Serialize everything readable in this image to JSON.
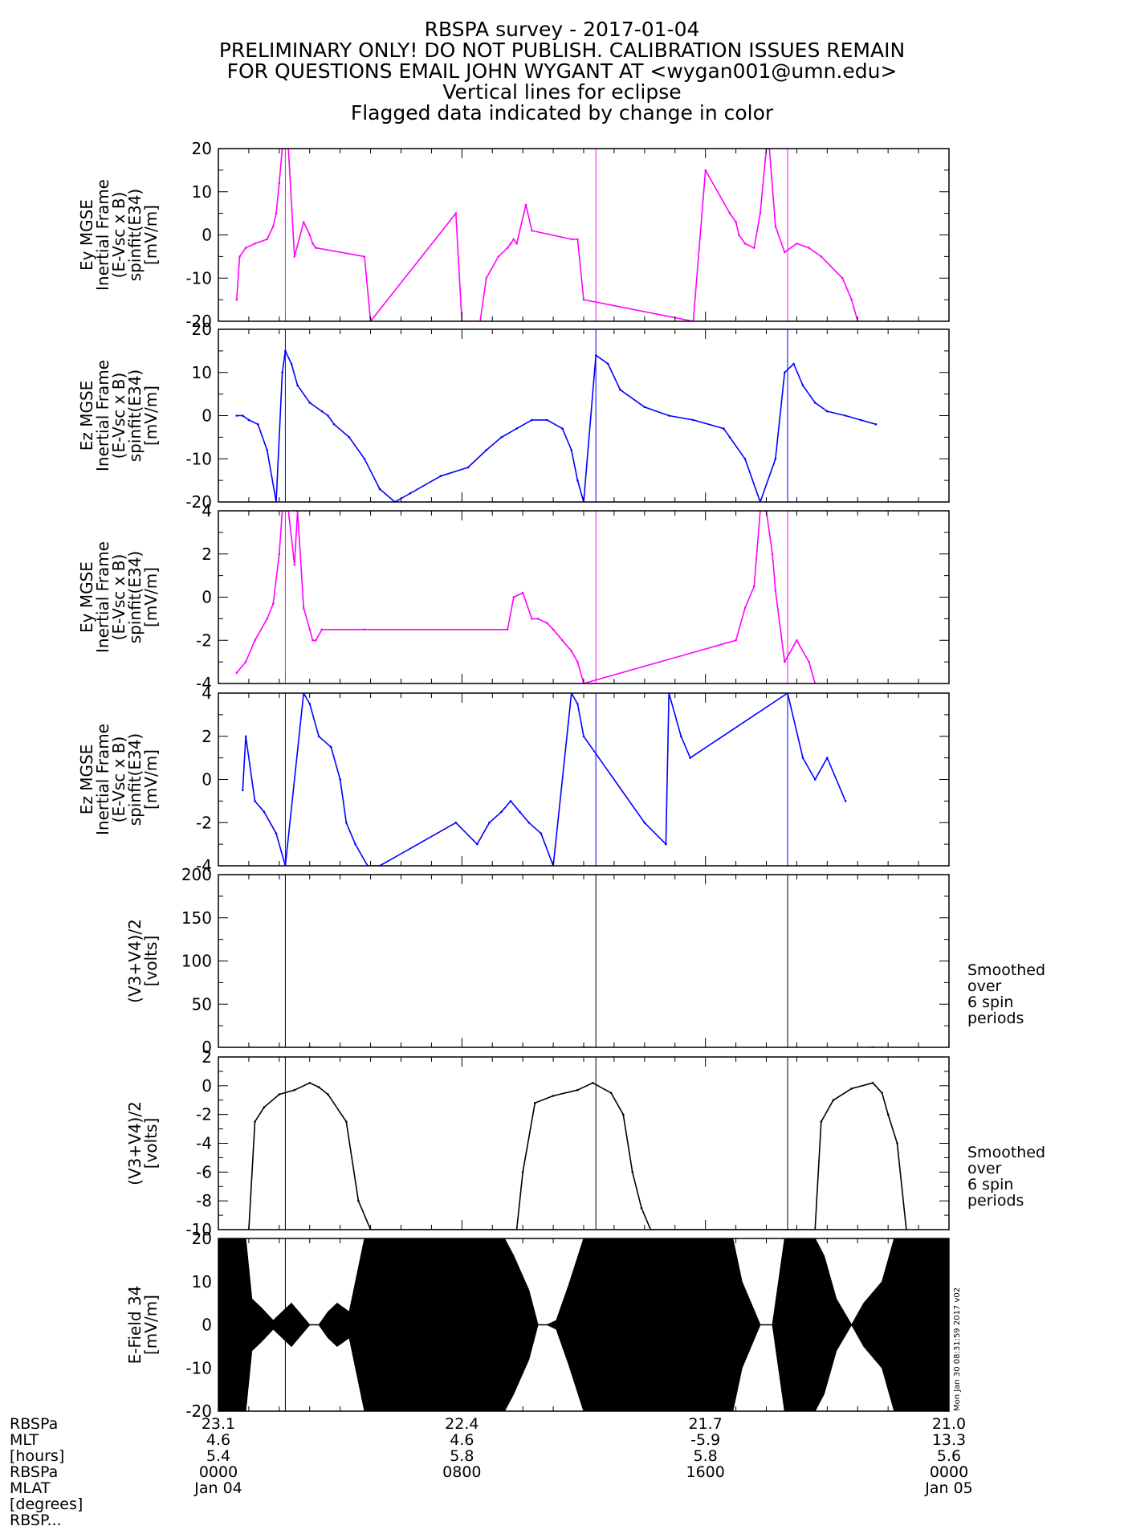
{
  "titles": [
    "RBSPA survey - 2017-01-04",
    "PRELIMINARY ONLY! DO NOT PUBLISH. CALIBRATION ISSUES REMAIN",
    "FOR QUESTIONS EMAIL JOHN WYGANT AT <wygan001@umn.edu>",
    "Vertical lines for eclipse",
    "Flagged data indicated by change in color"
  ],
  "chart_data": [
    {
      "type": "line",
      "panel": 1,
      "color": "#ff00ff",
      "ylabel": [
        "Ey MGSE",
        "Inertial Frame",
        "(E-Vsc x B)",
        "spinfit(E34)",
        "[mV/m]"
      ],
      "ylim": [
        -20,
        20
      ],
      "yticks": [
        20,
        10,
        0,
        -10,
        -20
      ],
      "x": [
        0.0,
        0.6,
        0.7,
        0.9,
        1.2,
        1.6,
        1.8,
        1.9,
        2.0,
        2.1,
        2.3,
        2.5,
        2.8,
        3.0,
        3.1,
        3.2,
        4.8,
        5.0,
        7.8,
        8.0,
        8.6,
        8.8,
        9.2,
        9.5,
        9.6,
        9.7,
        9.8,
        10.1,
        10.3,
        11.6,
        11.8,
        12.0,
        15.6,
        16.0,
        16.8,
        17.0,
        17.1,
        17.3,
        17.6,
        17.8,
        18.0,
        18.1,
        18.3,
        18.6,
        19.0,
        19.4,
        19.8,
        20.5,
        20.8,
        21.0,
        22.2,
        24.0
      ],
      "y": [
        null,
        -15,
        -5,
        -3,
        -2,
        -1,
        2,
        5,
        12,
        20,
        20,
        -5,
        3,
        0,
        -2,
        -3,
        -5,
        -20,
        5,
        -20,
        -20,
        -10,
        -5,
        -3,
        -2,
        -1,
        -2,
        7,
        1,
        -1,
        -1,
        -15,
        -20,
        15,
        5,
        3,
        0,
        -2,
        -3,
        5,
        20,
        20,
        2,
        -4,
        -2,
        -3,
        -5,
        -10,
        -15,
        -20,
        null,
        null
      ]
    },
    {
      "type": "line",
      "panel": 2,
      "color": "#0000ff",
      "ylabel": [
        "Ez MGSE",
        "Inertial Frame",
        "(E-Vsc x B)",
        "spinfit(E34)",
        "[mV/m]"
      ],
      "ylim": [
        -20,
        20
      ],
      "yticks": [
        20,
        10,
        0,
        -10,
        -20
      ],
      "x": [
        0.0,
        0.6,
        0.8,
        1.0,
        1.3,
        1.6,
        1.9,
        2.1,
        2.2,
        2.4,
        2.6,
        3.0,
        3.4,
        3.6,
        3.8,
        4.3,
        4.8,
        5.3,
        5.8,
        6.3,
        7.3,
        8.2,
        8.8,
        9.3,
        9.8,
        10.3,
        10.8,
        11.3,
        11.6,
        11.8,
        12.0,
        12.4,
        12.8,
        13.2,
        14.0,
        14.8,
        15.6,
        16.6,
        16.8,
        17.3,
        17.8,
        18.3,
        18.6,
        18.9,
        19.2,
        19.6,
        20.0,
        20.6,
        21.1,
        21.6,
        22.2,
        24.0
      ],
      "y": [
        null,
        0,
        0,
        -1,
        -2,
        -8,
        -20,
        10,
        15,
        12,
        7,
        3,
        1,
        0,
        -2,
        -5,
        -10,
        -17,
        -20,
        -18,
        -14,
        -12,
        -8,
        -5,
        -3,
        -1,
        -1,
        -3,
        -8,
        -15,
        -20,
        14,
        12,
        6,
        2,
        0,
        -1,
        -3,
        -5,
        -10,
        -20,
        -10,
        10,
        12,
        7,
        3,
        1,
        0,
        -1,
        -2,
        null,
        null
      ]
    },
    {
      "type": "line",
      "panel": 3,
      "color": "#ff00ff",
      "ylabel": [
        "Ey MGSE",
        "Inertial Frame",
        "(E-Vsc x B)",
        "spinfit(E34)",
        "[mV/m]"
      ],
      "ylim": [
        -4,
        4
      ],
      "yticks": [
        4,
        2,
        0,
        -2,
        -4
      ],
      "x": [
        0.0,
        0.6,
        0.9,
        1.2,
        1.6,
        1.8,
        2.0,
        2.1,
        2.3,
        2.5,
        2.6,
        2.8,
        3.0,
        3.1,
        3.2,
        3.4,
        4.8,
        9.5,
        9.7,
        10.0,
        10.3,
        10.5,
        10.8,
        11.0,
        11.3,
        11.6,
        11.8,
        12.0,
        17.0,
        17.3,
        17.6,
        17.8,
        18.0,
        18.2,
        18.3,
        18.6,
        19.0,
        19.4,
        19.6,
        24.0
      ],
      "y": [
        null,
        -3.5,
        -3,
        -2,
        -1,
        -0.3,
        2,
        4,
        4,
        1.5,
        4,
        -0.5,
        -1.5,
        -2,
        -2,
        -1.5,
        -1.5,
        -1.5,
        0,
        0.2,
        -1,
        -1,
        -1.2,
        -1.5,
        -2,
        -2.5,
        -3,
        -4,
        -2,
        -0.5,
        0.5,
        4,
        4,
        2,
        0.3,
        -3,
        -2,
        -3,
        -4,
        null
      ]
    },
    {
      "type": "line",
      "panel": 4,
      "color": "#0000ff",
      "ylabel": [
        "Ez MGSE",
        "Inertial Frame",
        "(E-Vsc x B)",
        "spinfit(E34)",
        "[mV/m]"
      ],
      "ylim": [
        -4,
        4
      ],
      "yticks": [
        4,
        2,
        0,
        -2,
        -4
      ],
      "x": [
        0.0,
        0.8,
        0.9,
        1.2,
        1.5,
        1.9,
        2.2,
        2.8,
        3.0,
        3.3,
        3.7,
        4.0,
        4.2,
        4.5,
        4.9,
        5.3,
        7.8,
        8.5,
        8.9,
        9.3,
        9.6,
        9.9,
        10.2,
        10.6,
        11.0,
        11.6,
        11.8,
        12.0,
        14.0,
        14.7,
        14.8,
        15.2,
        15.5,
        18.7,
        19.2,
        19.6,
        20.0,
        20.6,
        24.0
      ],
      "y": [
        null,
        -0.5,
        2,
        -1,
        -1.5,
        -2.5,
        -4,
        4,
        3.5,
        2,
        1.5,
        0,
        -2,
        -3,
        -4,
        -4,
        -2,
        -3,
        -2,
        -1.5,
        -1,
        -1.5,
        -2,
        -2.5,
        -4,
        4,
        3.5,
        2,
        -2,
        -3,
        4,
        2,
        1,
        4,
        1,
        0,
        1,
        -1,
        null
      ]
    },
    {
      "type": "line",
      "panel": 5,
      "color": "#000000",
      "ylabel": [
        "(V3+V4)/2",
        "[volts]"
      ],
      "ylim": [
        0,
        200
      ],
      "yticks": [
        200,
        150,
        100,
        50,
        0
      ],
      "x": [
        0.0,
        1.0,
        1.5,
        3.0,
        4.5,
        5.0,
        9.8,
        10.3,
        12.0,
        13.3,
        13.8,
        19.5,
        20.0,
        21.5,
        22.0,
        22.3,
        24.0
      ],
      "y": [
        null,
        -10,
        -2,
        0,
        -1,
        -10,
        -10,
        -2,
        0,
        -1,
        -8,
        -10,
        -2,
        0,
        -2,
        -10,
        null
      ]
    },
    {
      "type": "line",
      "panel": 6,
      "color": "#000000",
      "ylabel": [
        "(V3+V4)/2",
        "[volts]"
      ],
      "ylim": [
        -10,
        2
      ],
      "yticks": [
        2,
        0,
        -2,
        -4,
        -6,
        -8,
        -10
      ],
      "x": [
        0.0,
        1.0,
        1.2,
        1.5,
        2.0,
        2.5,
        3.0,
        3.3,
        3.6,
        4.2,
        4.6,
        5.0,
        9.8,
        10.0,
        10.4,
        11.0,
        11.8,
        12.3,
        12.9,
        13.3,
        13.6,
        13.9,
        14.2,
        19.6,
        19.8,
        20.2,
        20.8,
        21.5,
        21.8,
        22.0,
        22.3,
        22.6,
        24.0
      ],
      "y": [
        null,
        -10,
        -2.5,
        -1.5,
        -0.6,
        -0.3,
        0.2,
        -0.1,
        -0.6,
        -2.5,
        -8,
        -10,
        -10,
        -6,
        -1.2,
        -0.7,
        -0.3,
        0.2,
        -0.5,
        -2,
        -6,
        -8.5,
        -10,
        -10,
        -2.5,
        -1,
        -0.2,
        0.2,
        -0.5,
        -2,
        -4,
        -10,
        null
      ]
    },
    {
      "type": "area",
      "panel": 7,
      "color": "#000000",
      "ylabel": [
        "E-Field 34",
        "[mV/m]"
      ],
      "ylim": [
        -20,
        20
      ],
      "yticks": [
        20,
        10,
        0,
        -10,
        -20
      ],
      "x": [
        0.0,
        0.9,
        1.1,
        1.4,
        1.8,
        2.1,
        2.4,
        3.0,
        3.3,
        3.6,
        3.9,
        4.3,
        4.8,
        5.0,
        9.4,
        9.7,
        10.2,
        10.5,
        10.8,
        11.1,
        11.5,
        12.0,
        16.6,
        16.9,
        17.2,
        17.8,
        18.2,
        18.6,
        19.0,
        19.6,
        19.9,
        20.3,
        20.8,
        21.2,
        21.8,
        22.2,
        22.6,
        24.0
      ],
      "amplitude": [
        20,
        20,
        6,
        4,
        1,
        3,
        5,
        0,
        0,
        3,
        5,
        3,
        20,
        20,
        20,
        16,
        8,
        0,
        0,
        1,
        9,
        20,
        20,
        20,
        10,
        0,
        0,
        20,
        20,
        20,
        16,
        6,
        0,
        5,
        10,
        20,
        20,
        20
      ]
    }
  ],
  "xaxis": {
    "xlim": [
      0,
      24
    ],
    "major_ticks": [
      0,
      8,
      16,
      24
    ],
    "row_labels": [
      "RBSPa",
      "MLT",
      "[hours]",
      "RBSPa",
      "MLAT",
      "[degrees]",
      "RBSP..."
    ],
    "columns": [
      {
        "x": 0,
        "lines": [
          "23.1",
          "4.6",
          "5.4",
          "0000",
          "Jan 04"
        ]
      },
      {
        "x": 8,
        "lines": [
          "22.4",
          "4.6",
          "5.8",
          "0800",
          ""
        ]
      },
      {
        "x": 16,
        "lines": [
          "21.7",
          "-5.9",
          "5.8",
          "1600",
          ""
        ]
      },
      {
        "x": 24,
        "lines": [
          "21.0",
          "13.3",
          "5.6",
          "0000",
          "Jan 05"
        ]
      }
    ]
  },
  "eclipse_lines": [
    2.2,
    12.4,
    18.7
  ],
  "notes": {
    "smoothed": [
      "Smoothed",
      "over",
      "6 spin",
      "periods"
    ]
  },
  "timestamp": "Mon Jan 30 08:31:59 2017 v02"
}
